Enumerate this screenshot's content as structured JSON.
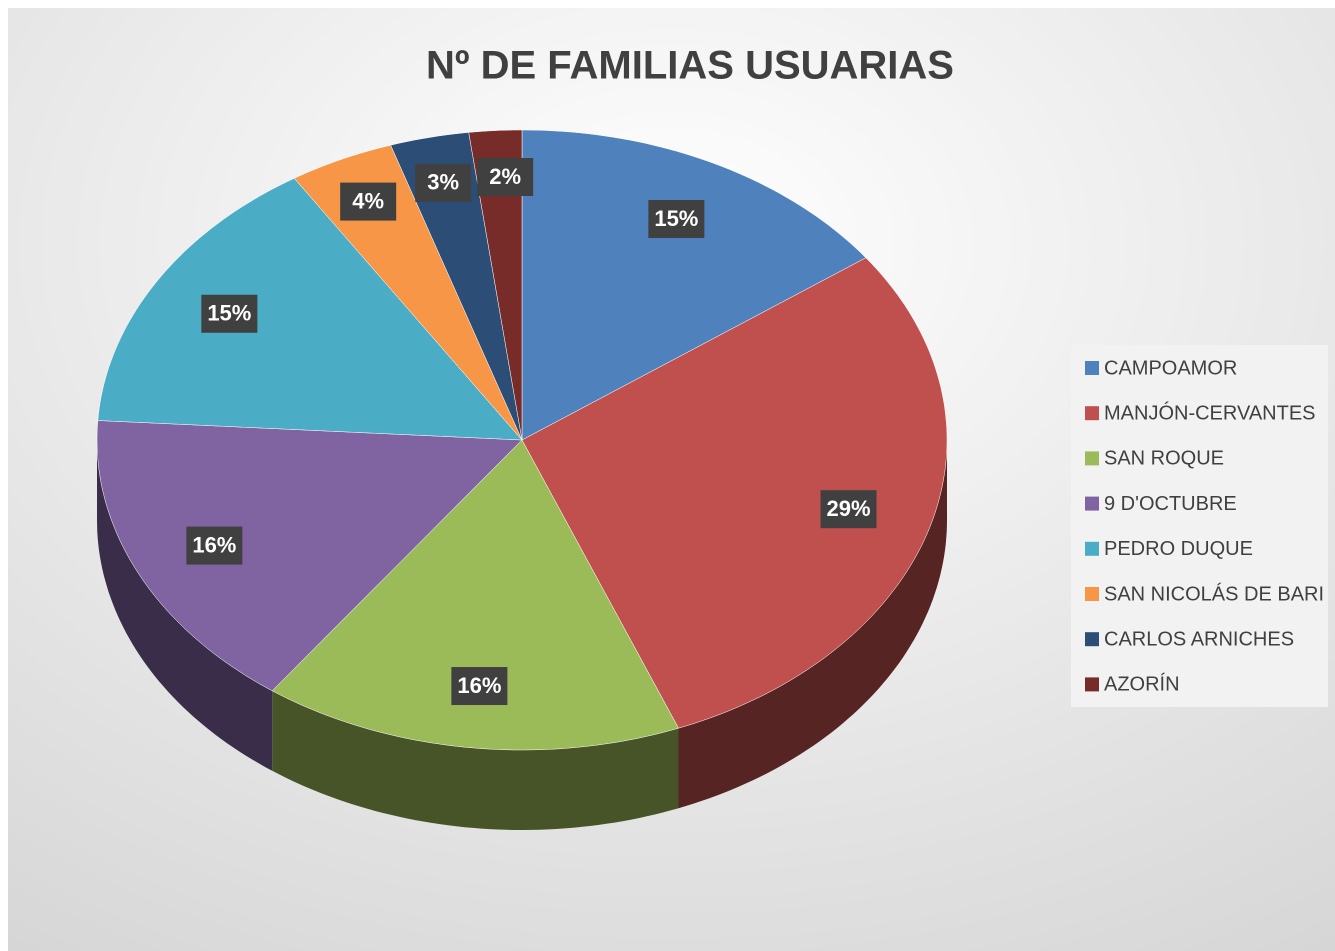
{
  "chart_data": {
    "type": "pie",
    "title": "Nº DE FAMILIAS USUARIAS",
    "categories": [
      "CAMPOAMOR",
      "MANJÓN-CERVANTES",
      "SAN ROQUE",
      "9 D'OCTUBRE",
      "PEDRO DUQUE",
      "SAN NICOLÁS DE BARI",
      "CARLOS ARNICHES",
      "AZORÍN"
    ],
    "values": [
      15,
      29,
      16,
      16,
      15,
      4,
      3,
      2
    ],
    "value_labels": [
      "15%",
      "29%",
      "16%",
      "16%",
      "15%",
      "4%",
      "3%",
      "2%"
    ],
    "colors": [
      "#4f81bd",
      "#c0504d",
      "#9bbb59",
      "#8064a2",
      "#4bacc6",
      "#f79646",
      "#2c4d75",
      "#772c2a"
    ],
    "legend": "right"
  }
}
